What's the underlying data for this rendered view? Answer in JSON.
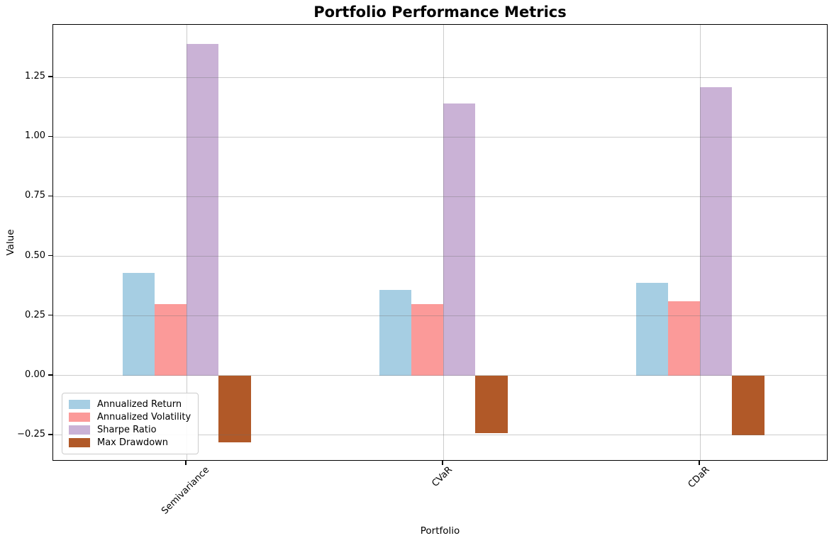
{
  "chart_data": {
    "type": "bar",
    "title": "Portfolio Performance Metrics",
    "xlabel": "Portfolio",
    "ylabel": "Value",
    "categories": [
      "Semivariance",
      "CVaR",
      "CDaR"
    ],
    "series": [
      {
        "name": "Annualized Return",
        "color": "#A6CEE3",
        "values": [
          0.43,
          0.36,
          0.39
        ]
      },
      {
        "name": "Annualized Volatility",
        "color": "#FB9A99",
        "values": [
          0.3,
          0.3,
          0.31
        ]
      },
      {
        "name": "Sharpe Ratio",
        "color": "#CAB2D6",
        "values": [
          1.39,
          1.14,
          1.21
        ]
      },
      {
        "name": "Max Drawdown",
        "color": "#B15928",
        "values": [
          -0.28,
          -0.24,
          -0.25
        ]
      }
    ],
    "bar_width": 0.125,
    "xlim": [
      -0.52,
      2.5
    ],
    "ylim": [
      -0.36,
      1.47
    ],
    "yticks": [
      -0.25,
      0.0,
      0.25,
      0.5,
      0.75,
      1.0,
      1.25
    ],
    "ytick_labels": [
      "−0.25",
      "0.00",
      "0.25",
      "0.50",
      "0.75",
      "1.00",
      "1.25"
    ],
    "grid": true,
    "grid_over_bars": true,
    "legend_position": "lower left",
    "x_tick_label_rotation_deg": 45
  }
}
